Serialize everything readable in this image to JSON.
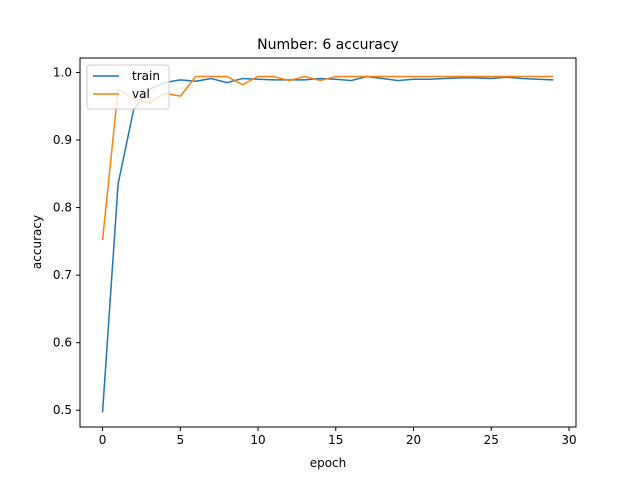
{
  "chart_data": {
    "type": "line",
    "title": "Number: 6 accuracy",
    "xlabel": "epoch",
    "ylabel": "accuracy",
    "xlim": [
      -1.45,
      30.45
    ],
    "ylim": [
      0.4752,
      1.0214
    ],
    "xticks": [
      0,
      5,
      10,
      15,
      20,
      25,
      30
    ],
    "yticks": [
      0.5,
      0.6,
      0.7,
      0.8,
      0.9,
      1.0
    ],
    "ytick_labels": [
      "0.5",
      "0.6",
      "0.7",
      "0.8",
      "0.9",
      "1.0"
    ],
    "grid": false,
    "legend_position": "upper-left",
    "x": [
      0,
      1,
      2,
      3,
      4,
      5,
      6,
      7,
      8,
      9,
      10,
      11,
      12,
      13,
      14,
      15,
      16,
      17,
      18,
      19,
      20,
      21,
      22,
      23,
      24,
      25,
      26,
      27,
      28,
      29
    ],
    "series": [
      {
        "name": "train",
        "color": "#1f77b4",
        "values": [
          0.497,
          0.835,
          0.945,
          0.975,
          0.985,
          0.989,
          0.987,
          0.991,
          0.985,
          0.991,
          0.99,
          0.989,
          0.989,
          0.989,
          0.991,
          0.99,
          0.988,
          0.994,
          0.991,
          0.988,
          0.99,
          0.99,
          0.991,
          0.992,
          0.992,
          0.991,
          0.993,
          0.991,
          0.99,
          0.989
        ]
      },
      {
        "name": "val",
        "color": "#ff7f0e",
        "values": [
          0.752,
          0.975,
          0.96,
          0.955,
          0.969,
          0.965,
          0.994,
          0.994,
          0.994,
          0.982,
          0.994,
          0.994,
          0.988,
          0.994,
          0.988,
          0.994,
          0.994,
          0.994,
          0.994,
          0.994,
          0.994,
          0.994,
          0.994,
          0.994,
          0.994,
          0.994,
          0.994,
          0.994,
          0.994,
          0.994
        ]
      }
    ]
  }
}
